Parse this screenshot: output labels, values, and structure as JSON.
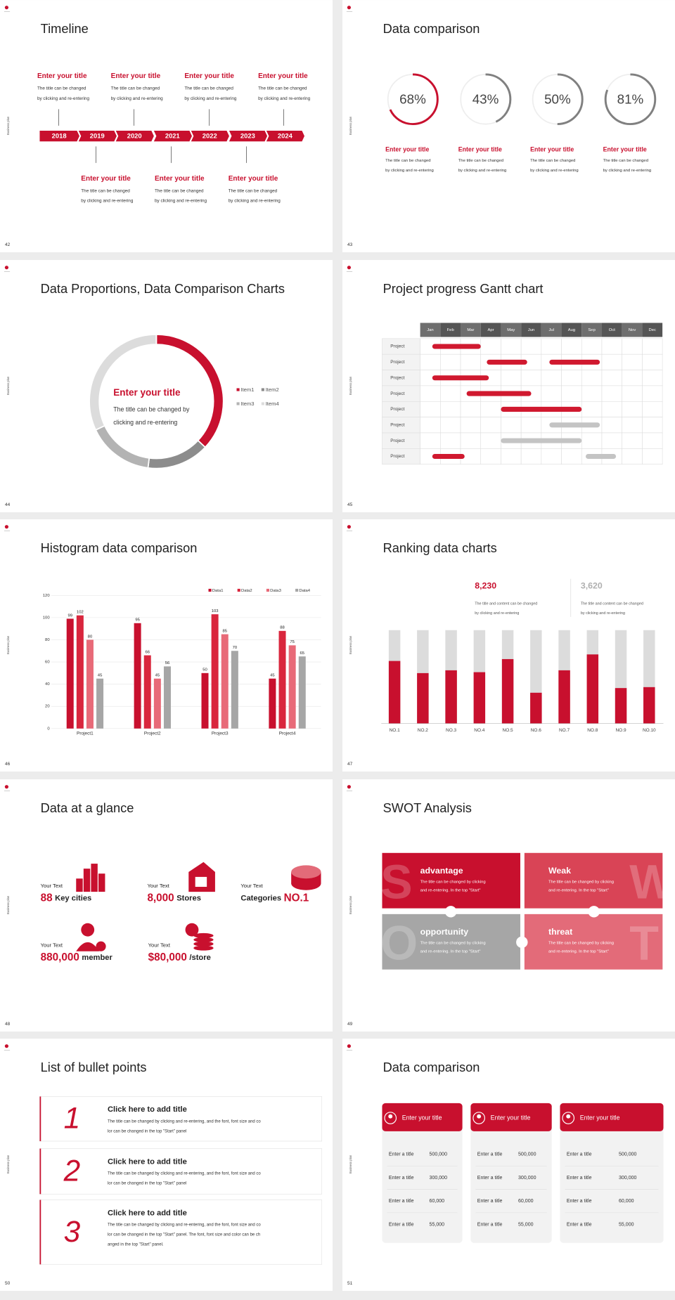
{
  "slides": [
    {
      "number": "42",
      "side_label": "Business plan",
      "title": "Timeline",
      "years": [
        "2018",
        "2019",
        "2020",
        "2021",
        "2022",
        "2023",
        "2024"
      ],
      "top_items": [
        {
          "title": "Enter your title",
          "lines": [
            "The title can be changed",
            "by clicking and re-entering"
          ]
        },
        {
          "title": "Enter your title",
          "lines": [
            "The title can be changed",
            "by clicking and re-entering"
          ]
        },
        {
          "title": "Enter your title",
          "lines": [
            "The title can be changed",
            "by clicking and re-entering"
          ]
        },
        {
          "title": "Enter your title",
          "lines": [
            "The title can be changed",
            "by clicking and re-entering"
          ]
        }
      ],
      "bottom_items": [
        {
          "title": "Enter your title",
          "lines": [
            "The title can be changed",
            "by clicking and re-entering"
          ]
        },
        {
          "title": "Enter your title",
          "lines": [
            "The title can be changed",
            "by clicking and re-entering"
          ]
        },
        {
          "title": "Enter your title",
          "lines": [
            "The title can be changed",
            "by clicking and re-entering"
          ]
        }
      ]
    },
    {
      "number": "43",
      "side_label": "Business plan",
      "title": "Data comparison",
      "values": [
        68,
        43,
        50,
        81
      ],
      "value_labels": [
        "68%",
        "43%",
        "50%",
        "81%"
      ],
      "colors": [
        "#c8102e",
        "#808080",
        "#808080",
        "#808080"
      ],
      "captions": [
        {
          "title": "Enter your title",
          "lines": [
            "The title can be changed",
            "by clicking and re-entering"
          ]
        },
        {
          "title": "Enter your title",
          "lines": [
            "The title can be changed",
            "by clicking and re-entering"
          ]
        },
        {
          "title": "Enter your title",
          "lines": [
            "The title can be changed",
            "by clicking and re-entering"
          ]
        },
        {
          "title": "Enter your title",
          "lines": [
            "The title can be changed",
            "by clicking and re-entering"
          ]
        }
      ]
    },
    {
      "number": "44",
      "side_label": "Business plan",
      "title": "Data Proportions, Data Comparison Charts",
      "center_title": "Enter your title",
      "center_lines": [
        "The title can be changed by",
        "clicking and re-entering"
      ],
      "items": [
        {
          "name": "Item1",
          "value": 37,
          "color": "#c8102e"
        },
        {
          "name": "Item2",
          "value": 15,
          "color": "#8c8c8c"
        },
        {
          "name": "Item3",
          "value": 16,
          "color": "#b3b3b3"
        },
        {
          "name": "Item4",
          "value": 32,
          "color": "#dcdcdc"
        }
      ]
    },
    {
      "number": "45",
      "side_label": "Business plan",
      "title": "Project progress Gantt chart",
      "months": [
        "Jan",
        "Feb",
        "Mar",
        "Apr",
        "May",
        "Jun",
        "Jul",
        "Aug",
        "Sep",
        "Oct",
        "Nov",
        "Dec"
      ],
      "rows": [
        {
          "label": "Project",
          "bars": [
            {
              "start": 0.6,
              "end": 3.0,
              "color": "#d0192f"
            }
          ]
        },
        {
          "label": "Project",
          "bars": [
            {
              "start": 3.3,
              "end": 5.3,
              "color": "#d0192f"
            },
            {
              "start": 6.4,
              "end": 8.9,
              "color": "#d0192f"
            }
          ]
        },
        {
          "label": "Project",
          "bars": [
            {
              "start": 0.6,
              "end": 3.4,
              "color": "#d0192f"
            }
          ]
        },
        {
          "label": "Project",
          "bars": [
            {
              "start": 2.3,
              "end": 5.5,
              "color": "#d0192f"
            }
          ]
        },
        {
          "label": "Project",
          "bars": [
            {
              "start": 4.0,
              "end": 8.0,
              "color": "#d0192f"
            }
          ]
        },
        {
          "label": "Project",
          "bars": [
            {
              "start": 6.4,
              "end": 8.9,
              "color": "#c4c4c4"
            }
          ]
        },
        {
          "label": "Project",
          "bars": [
            {
              "start": 4.0,
              "end": 8.0,
              "color": "#c4c4c4"
            }
          ]
        },
        {
          "label": "Project",
          "bars": [
            {
              "start": 0.6,
              "end": 2.2,
              "color": "#d0192f"
            },
            {
              "start": 8.2,
              "end": 9.7,
              "color": "#c4c4c4"
            }
          ]
        }
      ]
    },
    {
      "number": "46",
      "side_label": "Business plan",
      "title": "Histogram data comparison",
      "categories": [
        "Project1",
        "Project2",
        "Project3",
        "Project4"
      ],
      "series": [
        {
          "name": "Data1",
          "color": "#c8102e",
          "values": [
            99,
            95,
            50,
            45
          ]
        },
        {
          "name": "Data2",
          "color": "#d9263d",
          "values": [
            102,
            66,
            103,
            88
          ]
        },
        {
          "name": "Data3",
          "color": "#e86a78",
          "values": [
            80,
            45,
            85,
            75
          ]
        },
        {
          "name": "Data4",
          "color": "#a6a6a6",
          "values": [
            45,
            56,
            70,
            65
          ]
        }
      ],
      "ylim": [
        0,
        120
      ],
      "yticks": [
        0,
        20,
        40,
        60,
        80,
        100,
        120
      ],
      "grid": true,
      "legend": "top-right"
    },
    {
      "number": "47",
      "side_label": "Business plan",
      "title": "Ranking data charts",
      "stats": [
        {
          "value": "8,230",
          "color": "#c8102e",
          "lines": [
            "The title and content can be changed",
            "by clicking and re-entering"
          ]
        },
        {
          "value": "3,620",
          "color": "#b0b0b0",
          "lines": [
            "The title and content can be changed",
            "by clicking and re-entering"
          ]
        }
      ],
      "categories": [
        "NO.1",
        "NO.2",
        "NO.3",
        "NO.4",
        "NO.5",
        "NO.6",
        "NO.7",
        "NO.8",
        "NO.9",
        "NO.10"
      ],
      "values": [
        67,
        54,
        57,
        55,
        69,
        33,
        57,
        74,
        38,
        39
      ],
      "ylim": [
        0,
        100
      ],
      "color": "#c8102e"
    },
    {
      "number": "48",
      "side_label": "Business plan",
      "title": "Data at a glance",
      "items": [
        {
          "label": "Your Text",
          "parts": [
            {
              "text": "88",
              "color": "#c8102e"
            },
            {
              "text": "Key cities",
              "color": "#222222"
            }
          ]
        },
        {
          "label": "Your Text",
          "parts": [
            {
              "text": "8,000",
              "color": "#c8102e"
            },
            {
              "text": "Stores",
              "color": "#222222"
            }
          ]
        },
        {
          "label": "Your Text",
          "parts": [
            {
              "text": "Categories",
              "color": "#222222"
            },
            {
              "text": "NO.1",
              "color": "#c8102e"
            }
          ]
        },
        {
          "label": "Your Text",
          "parts": [
            {
              "text": "880,000",
              "color": "#c8102e"
            },
            {
              "text": "member",
              "color": "#222222"
            }
          ]
        },
        {
          "label": "Your Text",
          "parts": [
            {
              "text": "$80,000",
              "color": "#c8102e"
            },
            {
              "text": "/store",
              "color": "#222222"
            }
          ]
        }
      ]
    },
    {
      "number": "49",
      "side_label": "Business plan",
      "title": "SWOT Analysis",
      "quadrants": [
        {
          "letter": "S",
          "heading": "advantage",
          "color": "#c8102e",
          "lines": [
            "The title can be changed by clicking",
            "and re-entering. In the top \"Start\""
          ]
        },
        {
          "letter": "W",
          "heading": "Weak",
          "color": "#d94456",
          "lines": [
            "The title can be changed by clicking",
            "and re-entering. In the top \"Start\""
          ]
        },
        {
          "letter": "O",
          "heading": "opportunity",
          "color": "#a6a6a6",
          "lines": [
            "The title can be changed by clicking",
            "and re-entering. In the top \"Start\""
          ]
        },
        {
          "letter": "T",
          "heading": "threat",
          "color": "#e36b79",
          "lines": [
            "The title can be changed by clicking",
            "and re-entering. In the top \"Start\""
          ]
        }
      ]
    },
    {
      "number": "50",
      "side_label": "Business plan",
      "title": "List of bullet points",
      "items": [
        {
          "number": "1",
          "title": "Click here to add title",
          "lines": [
            "The title can be changed by clicking and re-entering, and the font, font size and co",
            "lor can be changed in the top \"Start\" panel"
          ]
        },
        {
          "number": "2",
          "title": "Click here to add title",
          "lines": [
            "The title can be changed by clicking and re-entering, and the font, font size and co",
            "lor can be changed in the top \"Start\" panel"
          ]
        },
        {
          "number": "3",
          "title": "Click here to add title",
          "lines": [
            "The title can be changed by clicking and re-entering, and the font, font size and co",
            "lor can be changed in the top \"Start\" panel. The font, font size and color can be ch",
            "anged in the top \"Start\" panel."
          ]
        }
      ]
    },
    {
      "number": "51",
      "side_label": "Business plan",
      "title": "Data comparison",
      "cards": [
        {
          "title": "Enter your title",
          "rows": [
            {
              "label": "Enter a title",
              "value": "500,000"
            },
            {
              "label": "Enter a title",
              "value": "300,000"
            },
            {
              "label": "Enter a title",
              "value": "60,000"
            },
            {
              "label": "Enter a title",
              "value": "55,000"
            }
          ]
        },
        {
          "title": "Enter your title",
          "rows": [
            {
              "label": "Enter a title",
              "value": "500,000"
            },
            {
              "label": "Enter a title",
              "value": "300,000"
            },
            {
              "label": "Enter a title",
              "value": "60,000"
            },
            {
              "label": "Enter a title",
              "value": "55,000"
            }
          ]
        },
        {
          "title": "Enter your title",
          "rows": [
            {
              "label": "Enter a title",
              "value": "500,000"
            },
            {
              "label": "Enter a title",
              "value": "300,000"
            },
            {
              "label": "Enter a title",
              "value": "60,000"
            },
            {
              "label": "Enter a title",
              "value": "55,000"
            }
          ]
        }
      ]
    }
  ]
}
